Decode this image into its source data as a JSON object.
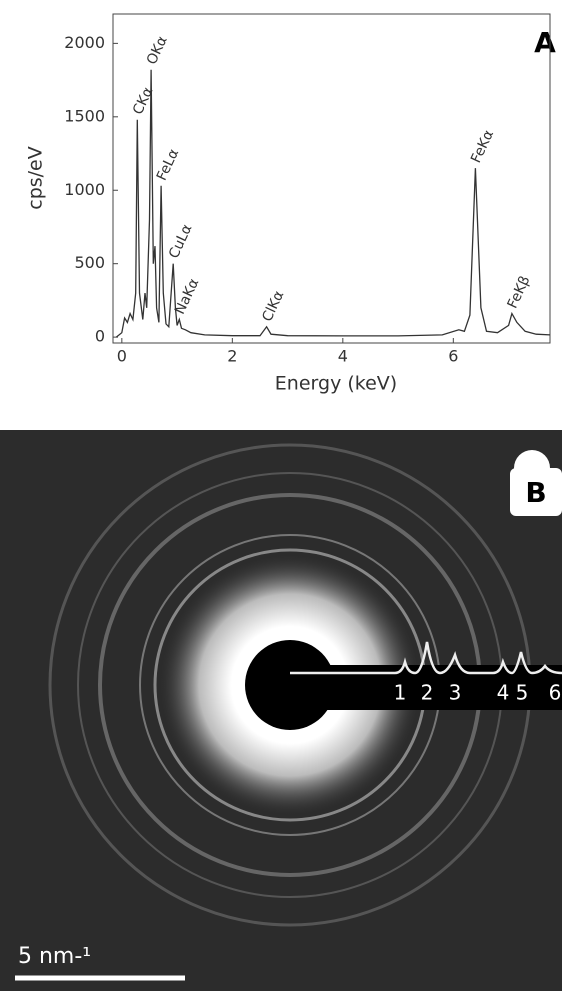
{
  "chart_data": {
    "type": "line",
    "panel_label": "A",
    "x_label": "Energy (keV)",
    "y_label": "cps/eV",
    "x": [
      -0.1,
      0.0,
      0.05,
      0.1,
      0.15,
      0.2,
      0.25,
      0.28,
      0.32,
      0.38,
      0.42,
      0.45,
      0.5,
      0.53,
      0.57,
      0.6,
      0.63,
      0.67,
      0.71,
      0.75,
      0.8,
      0.85,
      0.93,
      0.97,
      1.0,
      1.04,
      1.08,
      1.15,
      1.25,
      1.5,
      2.0,
      2.5,
      2.62,
      2.7,
      3.0,
      4.0,
      5.0,
      5.8,
      6.1,
      6.2,
      6.3,
      6.4,
      6.5,
      6.6,
      6.8,
      7.0,
      7.06,
      7.15,
      7.3,
      7.5,
      7.75
    ],
    "values": [
      0,
      30,
      130,
      100,
      160,
      120,
      300,
      1480,
      300,
      120,
      300,
      200,
      800,
      1820,
      500,
      620,
      200,
      100,
      1030,
      300,
      90,
      70,
      500,
      200,
      80,
      120,
      60,
      50,
      30,
      15,
      10,
      10,
      70,
      20,
      10,
      8,
      8,
      15,
      50,
      40,
      150,
      1150,
      200,
      40,
      30,
      80,
      160,
      100,
      40,
      20,
      15
    ],
    "color": "#333333",
    "xlim": [
      -0.16,
      7.75
    ],
    "ylim": [
      -40,
      2200
    ],
    "xticks": [
      0,
      2,
      4,
      6
    ],
    "yticks": [
      0,
      500,
      1000,
      1500,
      2000
    ],
    "annotations": [
      {
        "text": "CKα",
        "x": 0.28,
        "y": 1480
      },
      {
        "text": "OKα",
        "x": 0.53,
        "y": 1820
      },
      {
        "text": "FeLα",
        "x": 0.71,
        "y": 1030
      },
      {
        "text": "CuLα",
        "x": 0.93,
        "y": 500
      },
      {
        "text": "NaKα",
        "x": 1.04,
        "y": 120
      },
      {
        "text": "ClKα",
        "x": 2.62,
        "y": 70
      },
      {
        "text": "FeKα",
        "x": 6.4,
        "y": 1150
      },
      {
        "text": "FeKβ",
        "x": 7.06,
        "y": 160
      }
    ]
  },
  "panel_b": {
    "label": "B",
    "peak_labels": [
      "1",
      "2",
      "3",
      "4",
      "5",
      "6"
    ],
    "scale_bar": "5 nm-¹"
  }
}
